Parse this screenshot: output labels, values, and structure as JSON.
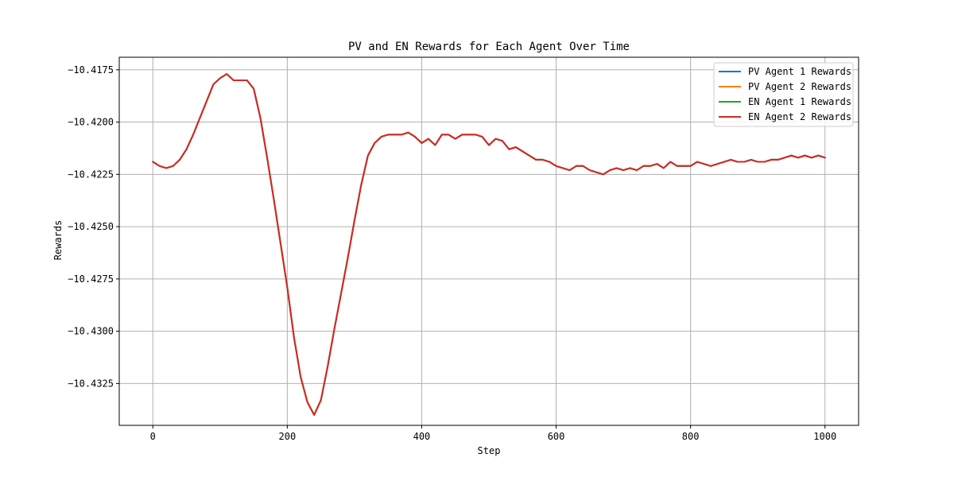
{
  "chart_data": {
    "type": "line",
    "title": "PV and EN Rewards for Each Agent Over Time",
    "xlabel": "Step",
    "ylabel": "Rewards",
    "xlim": [
      -50,
      1050
    ],
    "ylim": [
      -10.4345,
      -10.4169
    ],
    "xticks": [
      0,
      200,
      400,
      600,
      800,
      1000
    ],
    "xtick_labels": [
      "0",
      "200",
      "400",
      "600",
      "800",
      "1000"
    ],
    "yticks": [
      -10.4175,
      -10.42,
      -10.4225,
      -10.425,
      -10.4275,
      -10.43,
      -10.4325
    ],
    "ytick_labels": [
      "−10.4175",
      "−10.4200",
      "−10.4225",
      "−10.4250",
      "−10.4275",
      "−10.4300",
      "−10.4325"
    ],
    "grid": true,
    "legend_position": "top-right",
    "x": [
      0,
      10,
      20,
      30,
      40,
      50,
      60,
      70,
      80,
      90,
      100,
      110,
      120,
      130,
      140,
      150,
      160,
      170,
      180,
      190,
      200,
      210,
      220,
      230,
      240,
      250,
      260,
      270,
      280,
      290,
      300,
      310,
      320,
      330,
      340,
      350,
      360,
      370,
      380,
      390,
      400,
      410,
      420,
      430,
      440,
      450,
      460,
      470,
      480,
      490,
      500,
      510,
      520,
      530,
      540,
      550,
      560,
      570,
      580,
      590,
      600,
      610,
      620,
      630,
      640,
      650,
      660,
      670,
      680,
      690,
      700,
      710,
      720,
      730,
      740,
      750,
      760,
      770,
      780,
      790,
      800,
      810,
      820,
      830,
      840,
      850,
      860,
      870,
      880,
      890,
      900,
      910,
      920,
      930,
      940,
      950,
      960,
      970,
      980,
      990,
      1000
    ],
    "shared_values": [
      -10.4219,
      -10.4221,
      -10.4222,
      -10.4221,
      -10.4218,
      -10.4213,
      -10.4206,
      -10.4198,
      -10.419,
      -10.4182,
      -10.4179,
      -10.4177,
      -10.418,
      -10.418,
      -10.418,
      -10.4184,
      -10.4198,
      -10.4217,
      -10.4237,
      -10.4258,
      -10.4279,
      -10.4303,
      -10.4322,
      -10.4334,
      -10.434,
      -10.4333,
      -10.4317,
      -10.4299,
      -10.4282,
      -10.4265,
      -10.4247,
      -10.423,
      -10.4216,
      -10.421,
      -10.4207,
      -10.4206,
      -10.4206,
      -10.4206,
      -10.4205,
      -10.4207,
      -10.421,
      -10.4208,
      -10.4211,
      -10.4206,
      -10.4206,
      -10.4208,
      -10.4206,
      -10.4206,
      -10.4206,
      -10.4207,
      -10.4211,
      -10.4208,
      -10.4209,
      -10.4213,
      -10.4212,
      -10.4214,
      -10.4216,
      -10.4218,
      -10.4218,
      -10.4219,
      -10.4221,
      -10.4222,
      -10.4223,
      -10.4221,
      -10.4221,
      -10.4223,
      -10.4224,
      -10.4225,
      -10.4223,
      -10.4222,
      -10.4223,
      -10.4222,
      -10.4223,
      -10.4221,
      -10.4221,
      -10.422,
      -10.4222,
      -10.4219,
      -10.4221,
      -10.4221,
      -10.4221,
      -10.4219,
      -10.422,
      -10.4221,
      -10.422,
      -10.4219,
      -10.4218,
      -10.4219,
      -10.4219,
      -10.4218,
      -10.4219,
      -10.4219,
      -10.4218,
      -10.4218,
      -10.4217,
      -10.4216,
      -10.4217,
      -10.4216,
      -10.4217,
      -10.4216,
      -10.4217
    ],
    "series": [
      {
        "name": "PV Agent 1 Rewards",
        "color": "#1f77b4"
      },
      {
        "name": "PV Agent 2 Rewards",
        "color": "#ff7f0e"
      },
      {
        "name": "EN Agent 1 Rewards",
        "color": "#2ca02c"
      },
      {
        "name": "EN Agent 2 Rewards",
        "color": "#d62728"
      }
    ]
  }
}
